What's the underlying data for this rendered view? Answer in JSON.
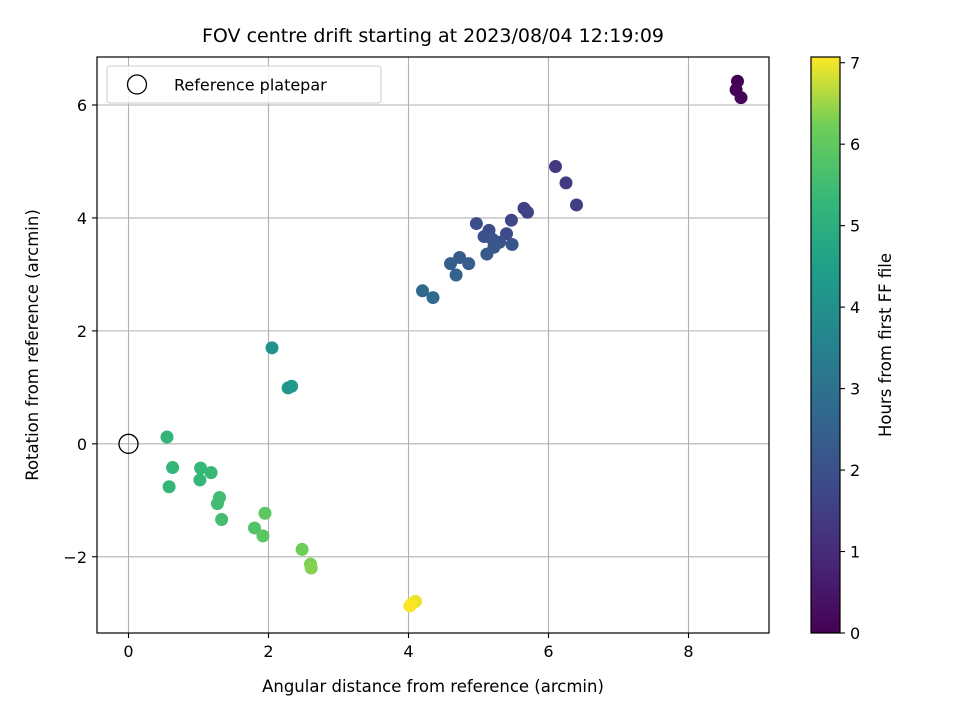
{
  "chart_data": {
    "type": "scatter",
    "title": "FOV centre drift starting at 2023/08/04 12:19:09",
    "xlabel": "Angular distance from reference (arcmin)",
    "ylabel": "Rotation from reference (arcmin)",
    "xlim": [
      -0.45,
      9.15
    ],
    "ylim": [
      -3.35,
      6.85
    ],
    "xticks": [
      0,
      2,
      4,
      6,
      8
    ],
    "yticks": [
      -2,
      0,
      2,
      4,
      6
    ],
    "grid": true,
    "legend": {
      "placement": "top-left",
      "entries": [
        "Reference platepar"
      ]
    },
    "reference": {
      "x": 0,
      "y": 0
    },
    "colorbar": {
      "label": "Hours from first FF file",
      "range": [
        0,
        7.07
      ],
      "ticks": [
        0,
        1,
        2,
        3,
        4,
        5,
        6,
        7
      ],
      "colormap": "viridis"
    },
    "points": [
      {
        "x": 8.7,
        "y": 6.42,
        "c": 0.0
      },
      {
        "x": 8.68,
        "y": 6.27,
        "c": 0.05
      },
      {
        "x": 8.75,
        "y": 6.13,
        "c": 0.1
      },
      {
        "x": 6.1,
        "y": 4.91,
        "c": 1.35
      },
      {
        "x": 6.25,
        "y": 4.62,
        "c": 1.4
      },
      {
        "x": 6.4,
        "y": 4.23,
        "c": 1.5
      },
      {
        "x": 5.65,
        "y": 4.17,
        "c": 1.6
      },
      {
        "x": 5.7,
        "y": 4.1,
        "c": 1.65
      },
      {
        "x": 5.47,
        "y": 3.96,
        "c": 1.75
      },
      {
        "x": 4.97,
        "y": 3.9,
        "c": 1.95
      },
      {
        "x": 5.15,
        "y": 3.78,
        "c": 1.9
      },
      {
        "x": 5.4,
        "y": 3.72,
        "c": 1.85
      },
      {
        "x": 5.08,
        "y": 3.67,
        "c": 2.0
      },
      {
        "x": 5.2,
        "y": 3.62,
        "c": 2.05
      },
      {
        "x": 5.3,
        "y": 3.57,
        "c": 2.1
      },
      {
        "x": 5.48,
        "y": 3.53,
        "c": 2.15
      },
      {
        "x": 5.22,
        "y": 3.48,
        "c": 2.2
      },
      {
        "x": 5.12,
        "y": 3.36,
        "c": 2.25
      },
      {
        "x": 4.73,
        "y": 3.3,
        "c": 2.3
      },
      {
        "x": 4.6,
        "y": 3.19,
        "c": 2.4
      },
      {
        "x": 4.86,
        "y": 3.19,
        "c": 2.35
      },
      {
        "x": 4.68,
        "y": 2.99,
        "c": 2.5
      },
      {
        "x": 4.2,
        "y": 2.71,
        "c": 2.7
      },
      {
        "x": 4.35,
        "y": 2.59,
        "c": 2.75
      },
      {
        "x": 2.05,
        "y": 1.7,
        "c": 4.1
      },
      {
        "x": 2.28,
        "y": 0.99,
        "c": 4.25
      },
      {
        "x": 2.33,
        "y": 1.02,
        "c": 4.3
      },
      {
        "x": 0.55,
        "y": 0.12,
        "c": 5.2
      },
      {
        "x": 0.63,
        "y": -0.42,
        "c": 5.25
      },
      {
        "x": 1.03,
        "y": -0.43,
        "c": 5.3
      },
      {
        "x": 1.18,
        "y": -0.51,
        "c": 5.35
      },
      {
        "x": 1.02,
        "y": -0.64,
        "c": 5.3
      },
      {
        "x": 0.58,
        "y": -0.76,
        "c": 5.25
      },
      {
        "x": 1.3,
        "y": -0.95,
        "c": 5.5
      },
      {
        "x": 1.27,
        "y": -1.06,
        "c": 5.5
      },
      {
        "x": 1.33,
        "y": -1.34,
        "c": 5.55
      },
      {
        "x": 1.95,
        "y": -1.23,
        "c": 5.95
      },
      {
        "x": 1.8,
        "y": -1.49,
        "c": 5.8
      },
      {
        "x": 1.92,
        "y": -1.63,
        "c": 5.9
      },
      {
        "x": 2.48,
        "y": -1.87,
        "c": 6.2
      },
      {
        "x": 2.6,
        "y": -2.13,
        "c": 6.3
      },
      {
        "x": 2.61,
        "y": -2.2,
        "c": 6.35
      },
      {
        "x": 4.1,
        "y": -2.79,
        "c": 6.95
      },
      {
        "x": 4.05,
        "y": -2.83,
        "c": 7.0
      },
      {
        "x": 4.02,
        "y": -2.87,
        "c": 7.05
      }
    ]
  }
}
